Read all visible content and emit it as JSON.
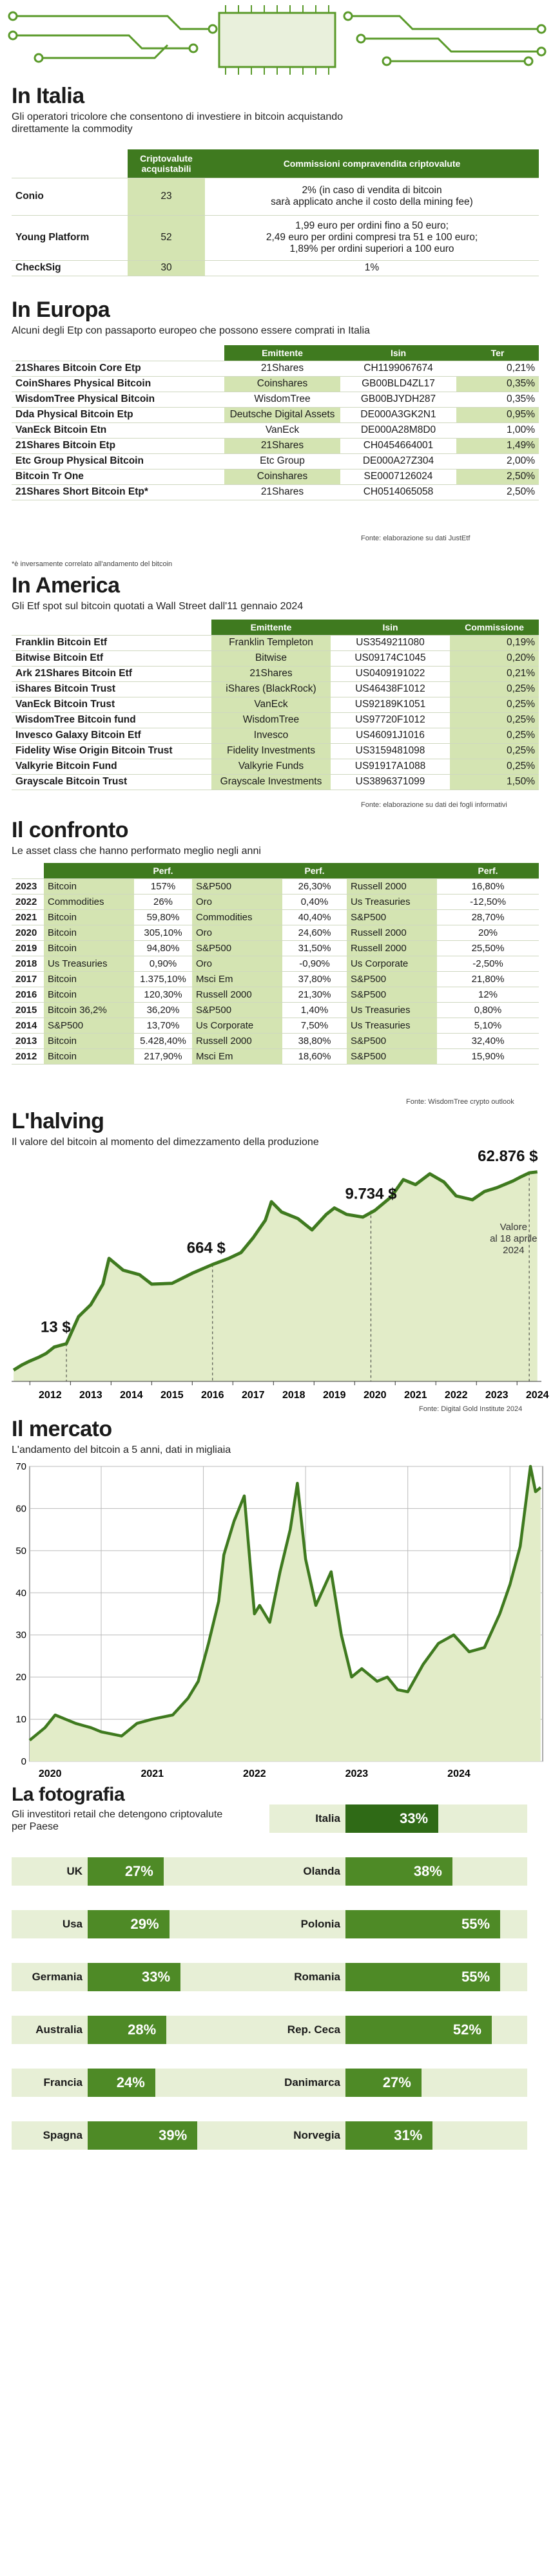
{
  "italia": {
    "title": "In Italia",
    "subtitle": "Gli operatori tricolore che consentono di investiere in bitcoin acquistando direttamente la commodity",
    "col_crypto": "Criptovalute acquistabili",
    "col_fee": "Commissioni compravendita criptovalute",
    "rows": [
      {
        "name": "Conio",
        "crypto": "23",
        "fee1": "2% (in caso di vendita di bitcoin",
        "fee2": "sarà applicato anche il costo della mining fee)",
        "fee3": ""
      },
      {
        "name": "Young Platform",
        "crypto": "52",
        "fee1": "1,99 euro per ordini fino a 50 euro;",
        "fee2": "2,49 euro per ordini compresi tra 51 e 100 euro;",
        "fee3": "1,89% per ordini superiori a 100 euro"
      },
      {
        "name": "CheckSig",
        "crypto": "30",
        "fee1": "1%",
        "fee2": "",
        "fee3": ""
      }
    ],
    "footnote": "*è inversamente correlato all'andamento del bitcoin"
  },
  "europa": {
    "title": "In Europa",
    "subtitle": "Alcuni degli Etp con passaporto europeo che possono essere comprati in Italia",
    "col_issuer": "Emittente",
    "col_isin": "Isin",
    "col_ter": "Ter",
    "rows": [
      {
        "name": "21Shares Bitcoin Core Etp",
        "issuer": "21Shares",
        "isin": "CH1199067674",
        "ter": "0,21%"
      },
      {
        "name": "CoinShares Physical Bitcoin",
        "issuer": "Coinshares",
        "isin": "GB00BLD4ZL17",
        "ter": "0,35%"
      },
      {
        "name": "WisdomTree Physical Bitcoin",
        "issuer": "WisdomTree",
        "isin": "GB00BJYDH287",
        "ter": "0,35%"
      },
      {
        "name": "Dda Physical Bitcoin Etp",
        "issuer": "Deutsche Digital Assets",
        "isin": "DE000A3GK2N1",
        "ter": "0,95%"
      },
      {
        "name": "VanEck Bitcoin Etn",
        "issuer": "VanEck",
        "isin": "DE000A28M8D0",
        "ter": "1,00%"
      },
      {
        "name": "21Shares Bitcoin Etp",
        "issuer": "21Shares",
        "isin": "CH0454664001",
        "ter": "1,49%"
      },
      {
        "name": "Etc Group Physical Bitcoin",
        "issuer": "Etc Group",
        "isin": "DE000A27Z304",
        "ter": "2,00%"
      },
      {
        "name": "Bitcoin Tr One",
        "issuer": "Coinshares",
        "isin": "SE0007126024",
        "ter": "2,50%"
      },
      {
        "name": "21Shares Short Bitcoin Etp*",
        "issuer": "21Shares",
        "isin": "CH0514065058",
        "ter": "2,50%"
      }
    ],
    "source": "Fonte: elaborazione su dati JustEtf"
  },
  "america": {
    "title": "In America",
    "subtitle": "Gli Etf spot sul bitcoin quotati a Wall Street dall'11 gennaio 2024",
    "col_issuer": "Emittente",
    "col_isin": "Isin",
    "col_fee": "Commissione",
    "rows": [
      {
        "name": "Franklin Bitcoin Etf",
        "issuer": "Franklin Templeton",
        "isin": "US3549211080",
        "fee": "0,19%"
      },
      {
        "name": "Bitwise Bitcoin Etf",
        "issuer": "Bitwise",
        "isin": "US09174C1045",
        "fee": "0,20%"
      },
      {
        "name": "Ark 21Shares Bitcoin Etf",
        "issuer": "21Shares",
        "isin": "US0409191022",
        "fee": "0,21%"
      },
      {
        "name": "iShares Bitcoin Trust",
        "issuer": "iShares (BlackRock)",
        "isin": "US46438F1012",
        "fee": "0,25%"
      },
      {
        "name": "VanEck Bitcoin Trust",
        "issuer": "VanEck",
        "isin": "US92189K1051",
        "fee": "0,25%"
      },
      {
        "name": "WisdomTree Bitcoin fund",
        "issuer": "WisdomTree",
        "isin": "US97720F1012",
        "fee": "0,25%"
      },
      {
        "name": "Invesco Galaxy Bitcoin Etf",
        "issuer": "Invesco",
        "isin": "US46091J1016",
        "fee": "0,25%"
      },
      {
        "name": "Fidelity Wise Origin Bitcoin Trust",
        "issuer": "Fidelity Investments",
        "isin": "US3159481098",
        "fee": "0,25%"
      },
      {
        "name": "Valkyrie Bitcoin Fund",
        "issuer": "Valkyrie Funds",
        "isin": "US91917A1088",
        "fee": "0,25%"
      },
      {
        "name": "Grayscale Bitcoin Trust",
        "issuer": "Grayscale Investments",
        "isin": "US3896371099",
        "fee": "1,50%"
      }
    ],
    "source": "Fonte: elaborazione su dati dei fogli informativi"
  },
  "confronto": {
    "title": "Il confronto",
    "subtitle": "Le asset class che hanno performato meglio negli anni",
    "perf_header": "Perf.",
    "rows": [
      {
        "year": "2023",
        "a1": "Bitcoin",
        "p1": "157%",
        "a2": "S&P500",
        "p2": "26,30%",
        "a3": "Russell 2000",
        "p3": "16,80%"
      },
      {
        "year": "2022",
        "a1": "Commodities",
        "p1": "26%",
        "a2": "Oro",
        "p2": "0,40%",
        "a3": "Us Treasuries",
        "p3": "-12,50%"
      },
      {
        "year": "2021",
        "a1": "Bitcoin",
        "p1": "59,80%",
        "a2": "Commodities",
        "p2": "40,40%",
        "a3": "S&P500",
        "p3": "28,70%"
      },
      {
        "year": "2020",
        "a1": "Bitcoin",
        "p1": "305,10%",
        "a2": "Oro",
        "p2": "24,60%",
        "a3": "Russell 2000",
        "p3": "20%"
      },
      {
        "year": "2019",
        "a1": "Bitcoin",
        "p1": "94,80%",
        "a2": "S&P500",
        "p2": "31,50%",
        "a3": "Russell 2000",
        "p3": "25,50%"
      },
      {
        "year": "2018",
        "a1": "Us Treasuries",
        "p1": "0,90%",
        "a2": "Oro",
        "p2": "-0,90%",
        "a3": "Us Corporate",
        "p3": "-2,50%"
      },
      {
        "year": "2017",
        "a1": "Bitcoin",
        "p1": "1.375,10%",
        "a2": "Msci Em",
        "p2": "37,80%",
        "a3": "S&P500",
        "p3": "21,80%"
      },
      {
        "year": "2016",
        "a1": "Bitcoin",
        "p1": "120,30%",
        "a2": "Russell 2000",
        "p2": "21,30%",
        "a3": "S&P500",
        "p3": "12%"
      },
      {
        "year": "2015",
        "a1": "Bitcoin 36,2%",
        "p1": "36,20%",
        "a2": "S&P500",
        "p2": "1,40%",
        "a3": "Us Treasuries",
        "p3": "0,80%"
      },
      {
        "year": "2014",
        "a1": "S&P500",
        "p1": "13,70%",
        "a2": "Us Corporate",
        "p2": "7,50%",
        "a3": "Us Treasuries",
        "p3": "5,10%"
      },
      {
        "year": "2013",
        "a1": "Bitcoin",
        "p1": "5.428,40%",
        "a2": "Russell 2000",
        "p2": "38,80%",
        "a3": "S&P500",
        "p3": "32,40%"
      },
      {
        "year": "2012",
        "a1": "Bitcoin",
        "p1": "217,90%",
        "a2": "Msci Em",
        "p2": "18,60%",
        "a3": "S&P500",
        "p3": "15,90%"
      }
    ],
    "source": "Fonte: WisdomTree crypto outlook"
  },
  "halving": {
    "title": "L'halving",
    "subtitle": "Il valore del bitcoin al momento del dimezzamento della produzione",
    "source": "Fonte: Digital Gold Institute 2024",
    "annotation": "Valore al 18 aprile 2024"
  },
  "mercato": {
    "title": "Il mercato",
    "subtitle": "L'andamento del bitcoin a 5 anni, dati in migliaia"
  },
  "fotografia": {
    "title": "La fotografia",
    "subtitle": "Gli investitori retail che detengono criptovalute per Paese"
  },
  "chart_data": [
    {
      "type": "line",
      "title": "L'halving",
      "x": [
        2011.6,
        2011.8,
        2012.0,
        2012.2,
        2012.4,
        2012.6,
        2012.9,
        2013.2,
        2013.5,
        2013.8,
        2013.95,
        2014.3,
        2014.7,
        2015.0,
        2015.5,
        2016.0,
        2016.5,
        2016.9,
        2017.2,
        2017.5,
        2017.8,
        2017.95,
        2018.2,
        2018.6,
        2018.95,
        2019.3,
        2019.5,
        2019.8,
        2020.2,
        2020.5,
        2020.9,
        2021.2,
        2021.5,
        2021.85,
        2022.2,
        2022.5,
        2022.9,
        2023.2,
        2023.5,
        2023.9,
        2024.1,
        2024.3,
        2024.5
      ],
      "y": [
        3.5,
        4.5,
        5.5,
        6.5,
        8,
        11,
        13,
        50,
        90,
        250,
        900,
        500,
        400,
        250,
        260,
        430,
        664,
        900,
        1200,
        2500,
        6000,
        15000,
        9000,
        6500,
        3700,
        8000,
        11000,
        8000,
        7000,
        9734,
        19000,
        45000,
        35000,
        60000,
        40000,
        20000,
        16500,
        25000,
        30000,
        42000,
        52000,
        62876,
        66000
      ],
      "scale": "log",
      "annotations": [
        {
          "label": "13 $",
          "x": 2012.9,
          "value": 13
        },
        {
          "label": "664 $",
          "x": 2016.5,
          "value": 664
        },
        {
          "label": "9.734 $",
          "x": 2020.4,
          "value": 9734
        },
        {
          "label": "62.876 $",
          "x": 2024.3,
          "value": 62876
        }
      ],
      "xticks": [
        "2012",
        "2013",
        "2014",
        "2015",
        "2016",
        "2017",
        "2018",
        "2019",
        "2020",
        "2021",
        "2022",
        "2023",
        "2024"
      ]
    },
    {
      "type": "line",
      "title": "Il mercato",
      "ylabel": "migliaia",
      "ylim": [
        0,
        70
      ],
      "yticks": [
        0,
        10,
        20,
        30,
        40,
        50,
        60,
        70
      ],
      "xticks": [
        "2020",
        "2021",
        "2022",
        "2023",
        "2024"
      ],
      "x": [
        2019.3,
        2019.45,
        2019.55,
        2019.75,
        2019.9,
        2020.0,
        2020.2,
        2020.35,
        2020.5,
        2020.7,
        2020.85,
        2020.95,
        2021.05,
        2021.15,
        2021.2,
        2021.3,
        2021.4,
        2021.5,
        2021.55,
        2021.65,
        2021.75,
        2021.85,
        2021.92,
        2022.0,
        2022.1,
        2022.25,
        2022.35,
        2022.45,
        2022.55,
        2022.7,
        2022.8,
        2022.9,
        2023.0,
        2023.15,
        2023.3,
        2023.45,
        2023.6,
        2023.75,
        2023.9,
        2024.0,
        2024.1,
        2024.2,
        2024.25,
        2024.3
      ],
      "y": [
        5,
        8,
        11,
        9,
        8,
        7,
        6,
        9,
        10,
        11,
        15,
        19,
        28,
        38,
        49,
        57,
        63,
        35,
        37,
        33,
        45,
        55,
        66,
        48,
        37,
        45,
        30,
        20,
        22,
        19,
        20,
        17,
        16.5,
        23,
        28,
        30,
        26,
        27,
        35,
        42,
        51,
        70,
        64,
        65
      ]
    },
    {
      "type": "bar",
      "title": "La fotografia",
      "categories": [
        "UK",
        "Usa",
        "Germania",
        "Australia",
        "Francia",
        "Spagna",
        "Italia",
        "Olanda",
        "Polonia",
        "Romania",
        "Rep. Ceca",
        "Danimarca",
        "Norvegia"
      ],
      "values": [
        27,
        29,
        33,
        28,
        24,
        39,
        33,
        38,
        55,
        55,
        52,
        27,
        31
      ],
      "labels": [
        "27%",
        "29%",
        "33%",
        "28%",
        "24%",
        "39%",
        "33%",
        "38%",
        "55%",
        "55%",
        "52%",
        "27%",
        "31%"
      ]
    }
  ]
}
